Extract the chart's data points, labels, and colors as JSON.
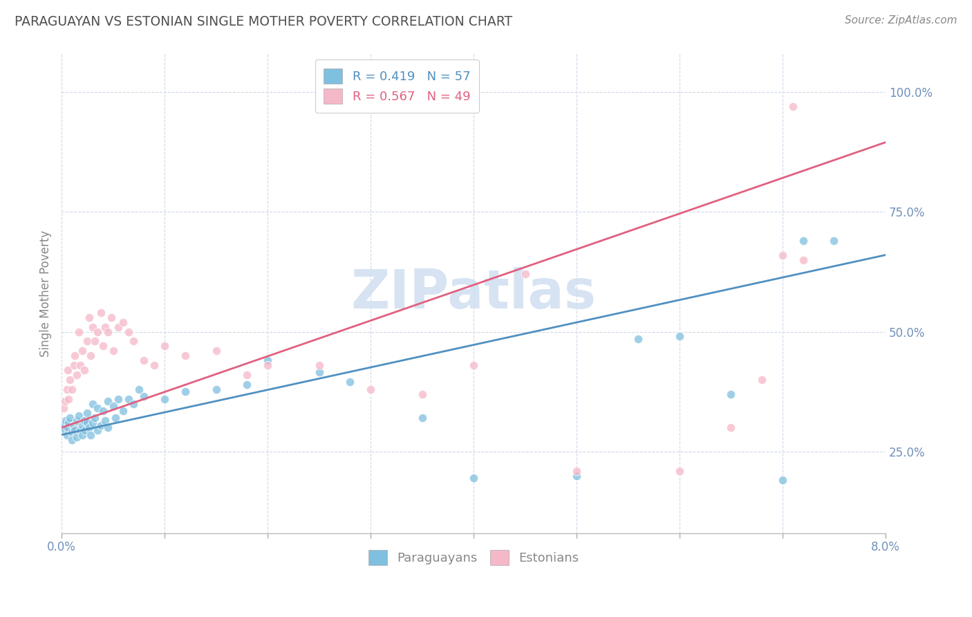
{
  "title": "PARAGUAYAN VS ESTONIAN SINGLE MOTHER POVERTY CORRELATION CHART",
  "source": "Source: ZipAtlas.com",
  "ylabel": "Single Mother Poverty",
  "blue_R": 0.419,
  "blue_N": 57,
  "pink_R": 0.567,
  "pink_N": 49,
  "xmin": 0.0,
  "xmax": 0.08,
  "ymin": 0.08,
  "ymax": 1.08,
  "yticks": [
    0.25,
    0.5,
    0.75,
    1.0
  ],
  "ytick_labels": [
    "25.0%",
    "50.0%",
    "75.0%",
    "100.0%"
  ],
  "blue_color": "#7fbfdf",
  "pink_color": "#f5b8c8",
  "blue_line_color": "#5090c0",
  "pink_line_color": "#e06080",
  "background_color": "#ffffff",
  "grid_color": "#d0d8e8",
  "title_color": "#505050",
  "watermark_color": "#d0dff0",
  "blue_scatter_x": [
    0.0002,
    0.0003,
    0.0004,
    0.0005,
    0.0006,
    0.0007,
    0.0008,
    0.001,
    0.001,
    0.0012,
    0.0013,
    0.0015,
    0.0015,
    0.0017,
    0.0018,
    0.002,
    0.002,
    0.0022,
    0.0023,
    0.0025,
    0.0025,
    0.0027,
    0.0028,
    0.003,
    0.003,
    0.0032,
    0.0035,
    0.0035,
    0.0038,
    0.004,
    0.0042,
    0.0045,
    0.0045,
    0.005,
    0.0052,
    0.0055,
    0.006,
    0.0065,
    0.007,
    0.0075,
    0.008,
    0.01,
    0.012,
    0.015,
    0.018,
    0.02,
    0.025,
    0.028,
    0.035,
    0.04,
    0.05,
    0.056,
    0.06,
    0.065,
    0.07,
    0.072,
    0.075
  ],
  "blue_scatter_y": [
    0.305,
    0.295,
    0.315,
    0.285,
    0.3,
    0.31,
    0.32,
    0.29,
    0.275,
    0.305,
    0.295,
    0.315,
    0.28,
    0.325,
    0.295,
    0.285,
    0.305,
    0.315,
    0.295,
    0.31,
    0.33,
    0.3,
    0.285,
    0.31,
    0.35,
    0.32,
    0.295,
    0.34,
    0.305,
    0.335,
    0.315,
    0.355,
    0.3,
    0.345,
    0.32,
    0.36,
    0.335,
    0.36,
    0.35,
    0.38,
    0.365,
    0.36,
    0.375,
    0.38,
    0.39,
    0.44,
    0.415,
    0.395,
    0.32,
    0.195,
    0.2,
    0.485,
    0.49,
    0.37,
    0.19,
    0.69,
    0.69
  ],
  "pink_scatter_x": [
    0.0002,
    0.0003,
    0.0005,
    0.0006,
    0.0007,
    0.0008,
    0.001,
    0.0012,
    0.0013,
    0.0015,
    0.0017,
    0.0018,
    0.002,
    0.0022,
    0.0025,
    0.0027,
    0.0028,
    0.003,
    0.0032,
    0.0035,
    0.0038,
    0.004,
    0.0042,
    0.0045,
    0.0048,
    0.005,
    0.0055,
    0.006,
    0.0065,
    0.007,
    0.008,
    0.009,
    0.01,
    0.012,
    0.015,
    0.018,
    0.02,
    0.025,
    0.03,
    0.035,
    0.04,
    0.045,
    0.05,
    0.06,
    0.065,
    0.07,
    0.068,
    0.072,
    0.071
  ],
  "pink_scatter_y": [
    0.34,
    0.355,
    0.38,
    0.42,
    0.36,
    0.4,
    0.38,
    0.43,
    0.45,
    0.41,
    0.5,
    0.43,
    0.46,
    0.42,
    0.48,
    0.53,
    0.45,
    0.51,
    0.48,
    0.5,
    0.54,
    0.47,
    0.51,
    0.5,
    0.53,
    0.46,
    0.51,
    0.52,
    0.5,
    0.48,
    0.44,
    0.43,
    0.47,
    0.45,
    0.46,
    0.41,
    0.43,
    0.43,
    0.38,
    0.37,
    0.43,
    0.62,
    0.21,
    0.21,
    0.3,
    0.66,
    0.4,
    0.65,
    0.97
  ],
  "blue_line_x0": 0.0,
  "blue_line_y0": 0.285,
  "blue_line_x1": 0.08,
  "blue_line_y1": 0.66,
  "pink_line_x0": 0.0,
  "pink_line_y0": 0.3,
  "pink_line_x1": 0.08,
  "pink_line_y1": 0.895
}
